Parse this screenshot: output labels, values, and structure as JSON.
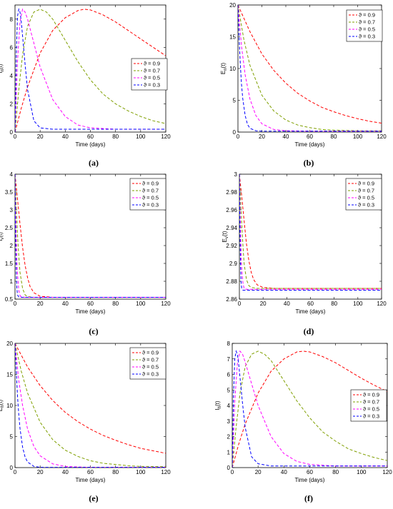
{
  "chart_data": [
    {
      "type": "line",
      "panel_label": "(a)",
      "xlabel": "Time (days)",
      "ylabel": "I_n(t)",
      "xlim": [
        0,
        120
      ],
      "ylim": [
        0,
        9
      ],
      "xticks": [
        0,
        20,
        40,
        60,
        80,
        100,
        120
      ],
      "yticks": [
        0,
        2,
        4,
        6,
        8
      ],
      "legend_position": "center-right",
      "series": [
        {
          "name": "ϑ = 0.9",
          "color": "#ff0000",
          "x": [
            0,
            5,
            10,
            20,
            30,
            40,
            50,
            55,
            60,
            70,
            80,
            90,
            100,
            110,
            120
          ],
          "y": [
            0,
            1.7,
            3.2,
            5.6,
            7.2,
            8.1,
            8.6,
            8.7,
            8.65,
            8.3,
            7.8,
            7.2,
            6.6,
            6.0,
            5.4
          ]
        },
        {
          "name": "ϑ = 0.7",
          "color": "#7f9f00",
          "x": [
            0,
            3,
            6,
            10,
            15,
            20,
            25,
            30,
            40,
            50,
            60,
            70,
            80,
            90,
            100,
            110,
            120
          ],
          "y": [
            0,
            3.0,
            5.5,
            7.5,
            8.5,
            8.7,
            8.5,
            8.0,
            6.5,
            5.0,
            3.7,
            2.7,
            2.0,
            1.5,
            1.1,
            0.8,
            0.6
          ]
        },
        {
          "name": "ϑ = 0.5",
          "color": "#ff00ff",
          "x": [
            0,
            2,
            4,
            6,
            8,
            10,
            15,
            20,
            30,
            40,
            50,
            60,
            80,
            100,
            120
          ],
          "y": [
            0,
            5.0,
            7.8,
            8.7,
            8.5,
            8.0,
            6.3,
            4.6,
            2.3,
            1.1,
            0.5,
            0.3,
            0.2,
            0.2,
            0.2
          ]
        },
        {
          "name": "ϑ = 0.3",
          "color": "#0000ff",
          "x": [
            0,
            1,
            2,
            3,
            4,
            5,
            6,
            8,
            10,
            15,
            20,
            30,
            60,
            120
          ],
          "y": [
            0,
            5.5,
            8.2,
            8.7,
            8.5,
            7.8,
            6.8,
            4.8,
            3.0,
            0.8,
            0.3,
            0.2,
            0.2,
            0.2
          ]
        }
      ]
    },
    {
      "type": "line",
      "panel_label": "(b)",
      "xlabel": "Time (days)",
      "ylabel": "E_n(t)",
      "xlim": [
        0,
        120
      ],
      "ylim": [
        0,
        20
      ],
      "xticks": [
        0,
        20,
        40,
        60,
        80,
        100,
        120
      ],
      "yticks": [
        0,
        5,
        10,
        15,
        20
      ],
      "legend_position": "top-right",
      "series": [
        {
          "name": "ϑ = 0.9",
          "color": "#ff0000",
          "x": [
            0,
            10,
            20,
            30,
            40,
            50,
            60,
            70,
            80,
            90,
            100,
            110,
            120
          ],
          "y": [
            20,
            15.8,
            12.3,
            9.7,
            7.7,
            6.1,
            4.9,
            3.9,
            3.2,
            2.6,
            2.1,
            1.7,
            1.4
          ]
        },
        {
          "name": "ϑ = 0.7",
          "color": "#7f9f00",
          "x": [
            0,
            5,
            10,
            20,
            30,
            40,
            50,
            60,
            70,
            80,
            100,
            120
          ],
          "y": [
            20,
            14.5,
            10.5,
            5.8,
            3.3,
            1.9,
            1.1,
            0.7,
            0.4,
            0.3,
            0.2,
            0.2
          ]
        },
        {
          "name": "ϑ = 0.5",
          "color": "#ff00ff",
          "x": [
            0,
            3,
            6,
            10,
            15,
            20,
            30,
            40,
            60,
            120
          ],
          "y": [
            20,
            13.5,
            9.0,
            5.2,
            2.6,
            1.3,
            0.4,
            0.2,
            0.15,
            0.15
          ]
        },
        {
          "name": "ϑ = 0.3",
          "color": "#0000ff",
          "x": [
            0,
            1,
            2,
            3,
            4,
            6,
            8,
            10,
            15,
            20,
            60,
            120
          ],
          "y": [
            20,
            14.5,
            10.5,
            7.5,
            5.3,
            2.6,
            1.2,
            0.6,
            0.2,
            0.15,
            0.15,
            0.15
          ]
        }
      ]
    },
    {
      "type": "line",
      "panel_label": "(c)",
      "xlabel": "Time (days)",
      "ylabel": "I_v(t)",
      "xlim": [
        0,
        120
      ],
      "ylim": [
        0.5,
        4
      ],
      "xticks": [
        0,
        20,
        40,
        60,
        80,
        100,
        120
      ],
      "yticks": [
        0.5,
        1,
        1.5,
        2,
        2.5,
        3,
        3.5,
        4
      ],
      "legend_position": "top-right",
      "series": [
        {
          "name": "ϑ = 0.9",
          "color": "#ff0000",
          "x": [
            0,
            2,
            4,
            6,
            8,
            10,
            12,
            15,
            20,
            30,
            60,
            120
          ],
          "y": [
            4,
            3.3,
            2.6,
            1.95,
            1.45,
            1.1,
            0.85,
            0.68,
            0.58,
            0.55,
            0.55,
            0.55
          ]
        },
        {
          "name": "ϑ = 0.7",
          "color": "#7f9f00",
          "x": [
            0,
            1,
            2,
            3,
            4,
            6,
            8,
            10,
            15,
            20,
            60,
            120
          ],
          "y": [
            4,
            3.1,
            2.3,
            1.7,
            1.25,
            0.8,
            0.62,
            0.57,
            0.55,
            0.55,
            0.55,
            0.55
          ]
        },
        {
          "name": "ϑ = 0.5",
          "color": "#ff00ff",
          "x": [
            0,
            0.5,
            1,
            1.5,
            2,
            3,
            4,
            5,
            8,
            20,
            120
          ],
          "y": [
            4,
            3.0,
            2.2,
            1.6,
            1.2,
            0.75,
            0.6,
            0.56,
            0.55,
            0.55,
            0.55
          ]
        },
        {
          "name": "ϑ = 0.3",
          "color": "#0000ff",
          "x": [
            0,
            0.3,
            0.6,
            1,
            1.5,
            2,
            3,
            5,
            20,
            120
          ],
          "y": [
            4,
            2.8,
            1.9,
            1.2,
            0.8,
            0.62,
            0.56,
            0.55,
            0.55,
            0.55
          ]
        }
      ]
    },
    {
      "type": "line",
      "panel_label": "(d)",
      "xlabel": "Time (days)",
      "ylabel": "E_v(t)",
      "xlim": [
        0,
        120
      ],
      "ylim": [
        2.86,
        3
      ],
      "xticks": [
        0,
        20,
        40,
        60,
        80,
        100,
        120
      ],
      "yticks": [
        2.86,
        2.88,
        2.9,
        2.92,
        2.94,
        2.96,
        2.98,
        3
      ],
      "legend_position": "top-right",
      "series": [
        {
          "name": "ϑ = 0.9",
          "color": "#ff0000",
          "x": [
            0,
            2,
            4,
            6,
            8,
            10,
            12,
            15,
            20,
            30,
            60,
            120
          ],
          "y": [
            3.0,
            2.975,
            2.948,
            2.922,
            2.903,
            2.89,
            2.882,
            2.876,
            2.873,
            2.872,
            2.872,
            2.872
          ]
        },
        {
          "name": "ϑ = 0.7",
          "color": "#7f9f00",
          "x": [
            0,
            1,
            2,
            3,
            4,
            6,
            8,
            10,
            15,
            20,
            60,
            120
          ],
          "y": [
            3.0,
            2.97,
            2.945,
            2.92,
            2.9,
            2.882,
            2.875,
            2.873,
            2.872,
            2.872,
            2.872,
            2.872
          ]
        },
        {
          "name": "ϑ = 0.5",
          "color": "#ff00ff",
          "x": [
            0,
            0.5,
            1,
            1.5,
            2,
            3,
            4,
            6,
            10,
            30,
            120
          ],
          "y": [
            3.0,
            2.965,
            2.935,
            2.91,
            2.893,
            2.878,
            2.872,
            2.871,
            2.871,
            2.871,
            2.871
          ]
        },
        {
          "name": "ϑ = 0.3",
          "color": "#0000ff",
          "x": [
            0,
            0.3,
            0.6,
            1,
            1.5,
            2,
            3,
            6,
            30,
            120
          ],
          "y": [
            3.0,
            2.96,
            2.925,
            2.895,
            2.878,
            2.872,
            2.87,
            2.87,
            2.87,
            2.87
          ]
        }
      ]
    },
    {
      "type": "line",
      "panel_label": "(e)",
      "xlabel": "Time (days)",
      "ylabel": "E_h(t)",
      "xlim": [
        0,
        120
      ],
      "ylim": [
        0,
        20
      ],
      "xticks": [
        0,
        20,
        40,
        60,
        80,
        100,
        120
      ],
      "yticks": [
        0,
        5,
        10,
        15,
        20
      ],
      "legend_position": "top-right",
      "series": [
        {
          "name": "ϑ = 0.9",
          "color": "#ff0000",
          "x": [
            0,
            10,
            20,
            30,
            40,
            50,
            60,
            70,
            80,
            90,
            100,
            110,
            120
          ],
          "y": [
            20,
            16.2,
            13.2,
            10.8,
            8.9,
            7.4,
            6.2,
            5.2,
            4.4,
            3.7,
            3.1,
            2.7,
            2.3
          ]
        },
        {
          "name": "ϑ = 0.7",
          "color": "#7f9f00",
          "x": [
            0,
            5,
            10,
            20,
            30,
            40,
            50,
            60,
            70,
            80,
            90,
            100,
            120
          ],
          "y": [
            20,
            15.5,
            12.0,
            7.3,
            4.5,
            2.8,
            1.8,
            1.1,
            0.7,
            0.5,
            0.3,
            0.2,
            0.15
          ]
        },
        {
          "name": "ϑ = 0.5",
          "color": "#ff00ff",
          "x": [
            0,
            3,
            6,
            10,
            15,
            20,
            30,
            40,
            50,
            60,
            120
          ],
          "y": [
            20,
            14.0,
            10.0,
            6.2,
            3.4,
            1.9,
            0.6,
            0.2,
            0.1,
            0.05,
            0.05
          ]
        },
        {
          "name": "ϑ = 0.3",
          "color": "#0000ff",
          "x": [
            0,
            1,
            2,
            3,
            4,
            6,
            8,
            10,
            15,
            20,
            60,
            120
          ],
          "y": [
            20,
            15.5,
            11.5,
            8.5,
            6.3,
            3.3,
            1.7,
            0.9,
            0.2,
            0.05,
            0.05,
            0.05
          ]
        }
      ]
    },
    {
      "type": "line",
      "panel_label": "(f)",
      "xlabel": "Time (days)",
      "ylabel": "I_h(t)",
      "xlim": [
        0,
        120
      ],
      "ylim": [
        0,
        8
      ],
      "xticks": [
        0,
        20,
        40,
        60,
        80,
        100,
        120
      ],
      "yticks": [
        0,
        1,
        2,
        3,
        4,
        5,
        6,
        7,
        8
      ],
      "legend_position": "center-right",
      "series": [
        {
          "name": "ϑ = 0.9",
          "color": "#ff0000",
          "x": [
            0,
            5,
            10,
            20,
            30,
            40,
            50,
            55,
            60,
            70,
            80,
            90,
            100,
            110,
            120
          ],
          "y": [
            0,
            1.5,
            2.8,
            4.8,
            6.2,
            7.0,
            7.45,
            7.5,
            7.45,
            7.15,
            6.75,
            6.25,
            5.75,
            5.3,
            4.9
          ]
        },
        {
          "name": "ϑ = 0.7",
          "color": "#7f9f00",
          "x": [
            0,
            3,
            6,
            10,
            15,
            20,
            25,
            30,
            40,
            50,
            60,
            70,
            80,
            90,
            100,
            110,
            120
          ],
          "y": [
            0,
            2.6,
            4.8,
            6.5,
            7.3,
            7.5,
            7.3,
            6.9,
            5.6,
            4.3,
            3.2,
            2.3,
            1.7,
            1.2,
            0.9,
            0.65,
            0.45
          ]
        },
        {
          "name": "ϑ = 0.5",
          "color": "#ff00ff",
          "x": [
            0,
            2,
            4,
            6,
            8,
            10,
            15,
            20,
            30,
            40,
            50,
            60,
            80,
            100,
            120
          ],
          "y": [
            0,
            4.3,
            6.7,
            7.5,
            7.3,
            6.8,
            5.4,
            4.0,
            2.0,
            0.9,
            0.4,
            0.2,
            0.1,
            0.1,
            0.1
          ]
        },
        {
          "name": "ϑ = 0.3",
          "color": "#0000ff",
          "x": [
            0,
            1,
            2,
            3,
            4,
            5,
            6,
            8,
            10,
            15,
            20,
            30,
            60,
            120
          ],
          "y": [
            0,
            4.7,
            7.0,
            7.5,
            7.3,
            6.7,
            5.8,
            4.1,
            2.6,
            0.7,
            0.25,
            0.1,
            0.1,
            0.1
          ]
        }
      ]
    }
  ]
}
